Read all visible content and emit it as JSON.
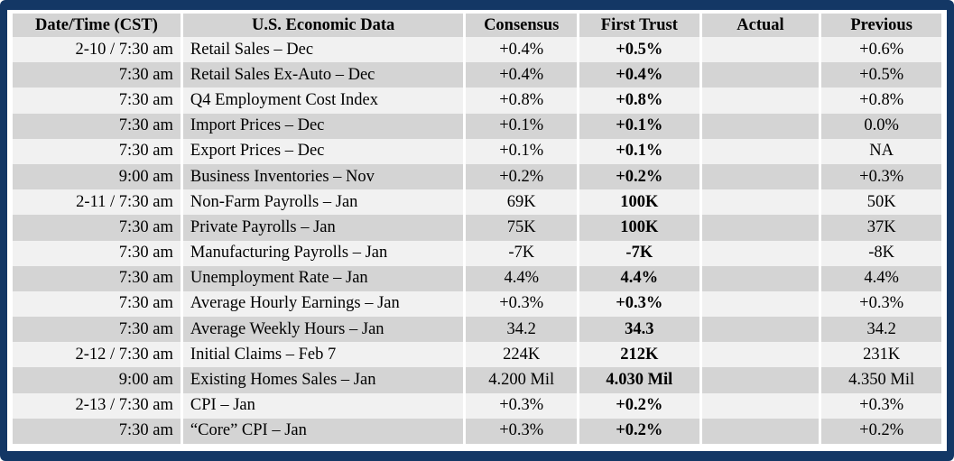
{
  "headers": {
    "date": "Date/Time (CST)",
    "name": "U.S. Economic Data",
    "consensus": "Consensus",
    "first_trust": "First Trust",
    "actual": "Actual",
    "previous": "Previous"
  },
  "rows": [
    {
      "date": "2-10 / 7:30 am",
      "name": "Retail Sales – Dec",
      "consensus": "+0.4%",
      "first_trust": "+0.5%",
      "actual": "",
      "previous": "+0.6%"
    },
    {
      "date": "7:30 am",
      "name": "Retail Sales Ex-Auto – Dec",
      "consensus": "+0.4%",
      "first_trust": "+0.4%",
      "actual": "",
      "previous": "+0.5%"
    },
    {
      "date": "7:30 am",
      "name": "Q4 Employment Cost Index",
      "consensus": "+0.8%",
      "first_trust": "+0.8%",
      "actual": "",
      "previous": "+0.8%"
    },
    {
      "date": "7:30 am",
      "name": "Import Prices – Dec",
      "consensus": "+0.1%",
      "first_trust": "+0.1%",
      "actual": "",
      "previous": "0.0%"
    },
    {
      "date": "7:30 am",
      "name": "Export Prices – Dec",
      "consensus": "+0.1%",
      "first_trust": "+0.1%",
      "actual": "",
      "previous": "NA"
    },
    {
      "date": "9:00 am",
      "name": "Business Inventories – Nov",
      "consensus": "+0.2%",
      "first_trust": "+0.2%",
      "actual": "",
      "previous": "+0.3%"
    },
    {
      "date": "2-11 / 7:30 am",
      "name": "Non-Farm Payrolls – Jan",
      "consensus": "69K",
      "first_trust": "100K",
      "actual": "",
      "previous": "50K"
    },
    {
      "date": "7:30 am",
      "name": "Private Payrolls – Jan",
      "consensus": "75K",
      "first_trust": "100K",
      "actual": "",
      "previous": "37K"
    },
    {
      "date": "7:30 am",
      "name": "Manufacturing Payrolls – Jan",
      "consensus": "-7K",
      "first_trust": "-7K",
      "actual": "",
      "previous": "-8K"
    },
    {
      "date": "7:30 am",
      "name": "Unemployment Rate – Jan",
      "consensus": "4.4%",
      "first_trust": "4.4%",
      "actual": "",
      "previous": "4.4%"
    },
    {
      "date": "7:30 am",
      "name": "Average Hourly Earnings – Jan",
      "consensus": "+0.3%",
      "first_trust": "+0.3%",
      "actual": "",
      "previous": "+0.3%"
    },
    {
      "date": "7:30 am",
      "name": "Average Weekly Hours – Jan",
      "consensus": "34.2",
      "first_trust": "34.3",
      "actual": "",
      "previous": "34.2"
    },
    {
      "date": "2-12 / 7:30 am",
      "name": "Initial Claims – Feb 7",
      "consensus": "224K",
      "first_trust": "212K",
      "actual": "",
      "previous": "231K"
    },
    {
      "date": "9:00 am",
      "name": "Existing Homes Sales – Jan",
      "consensus": "4.200 Mil",
      "first_trust": "4.030 Mil",
      "actual": "",
      "previous": "4.350 Mil"
    },
    {
      "date": "2-13 / 7:30 am",
      "name": "CPI – Jan",
      "consensus": "+0.3%",
      "first_trust": "+0.2%",
      "actual": "",
      "previous": "+0.3%"
    },
    {
      "date": "7:30 am",
      "name": "“Core” CPI – Jan",
      "consensus": "+0.3%",
      "first_trust": "+0.2%",
      "actual": "",
      "previous": "+0.2%"
    }
  ],
  "colors": {
    "frame": "#133765",
    "row_light": "#f1f1f1",
    "row_dark": "#d4d4d4"
  }
}
